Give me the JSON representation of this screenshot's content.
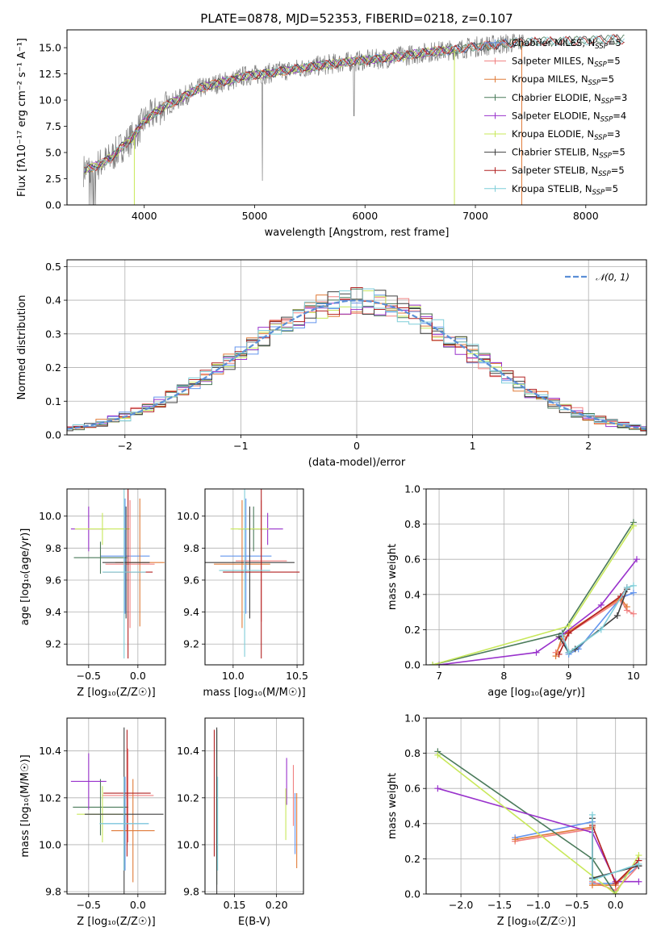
{
  "colors": {
    "Chabrier MILES": "#6495ed",
    "Salpeter MILES": "#f08080",
    "Kroupa MILES": "#e07b39",
    "Chabrier ELODIE": "#4a7a5a",
    "Salpeter ELODIE": "#9932cc",
    "Kroupa ELODIE": "#c8e85a",
    "Chabrier STELIB": "#404040",
    "Salpeter STELIB": "#b22222",
    "Kroupa STELIB": "#7fcdd8",
    "spectrum": "#808080",
    "normal": "#5b8fd6"
  },
  "chart_data": [
    {
      "id": "spectrum",
      "type": "line",
      "title": "PLATE=0878, MJD=52353, FIBERID=0218, z=0.107",
      "xlabel": "wavelength [Angstrom, rest frame]",
      "ylabel": "Flux [fλ10⁻¹⁷ erg cm⁻² s⁻¹ A⁻¹]",
      "xlim": [
        3300,
        8550
      ],
      "ylim": [
        0,
        16.7
      ],
      "xticks": [
        "4000",
        "5000",
        "6000",
        "7000",
        "8000"
      ],
      "yticks": [
        "0.0",
        "2.5",
        "5.0",
        "7.5",
        "10.0",
        "12.5",
        "15.0"
      ],
      "grid": false,
      "legend_position": "right",
      "legend": [
        "Chabrier MILES, N_SSP=5",
        "Salpeter MILES, N_SSP=5",
        "Kroupa MILES, N_SSP=5",
        "Chabrier ELODIE, N_SSP=3",
        "Salpeter ELODIE, N_SSP=4",
        "Kroupa ELODIE, N_SSP=3",
        "Chabrier STELIB, N_SSP=5",
        "Salpeter STELIB, N_SSP=5",
        "Kroupa STELIB, N_SSP=5"
      ],
      "legend_sub": "SSP",
      "continuum": [
        [
          3450,
          3.3
        ],
        [
          3600,
          3.9
        ],
        [
          3700,
          4.5
        ],
        [
          3800,
          5.6
        ],
        [
          3900,
          6.5
        ],
        [
          4000,
          8.0
        ],
        [
          4100,
          8.8
        ],
        [
          4200,
          9.5
        ],
        [
          4300,
          10.0
        ],
        [
          4400,
          10.6
        ],
        [
          4500,
          11.1
        ],
        [
          4600,
          11.4
        ],
        [
          4700,
          11.7
        ],
        [
          4800,
          11.9
        ],
        [
          4900,
          12.3
        ],
        [
          5000,
          12.4
        ],
        [
          5100,
          12.5
        ],
        [
          5200,
          12.7
        ],
        [
          5400,
          13.0
        ],
        [
          5600,
          13.3
        ],
        [
          5800,
          13.6
        ],
        [
          6000,
          13.8
        ],
        [
          6200,
          14.0
        ],
        [
          6400,
          14.3
        ],
        [
          6600,
          14.6
        ],
        [
          6800,
          14.8
        ],
        [
          7000,
          15.1
        ],
        [
          7200,
          15.3
        ],
        [
          7400,
          15.5
        ],
        [
          7600,
          15.6
        ],
        [
          7800,
          15.6
        ],
        [
          8000,
          15.7
        ],
        [
          8200,
          15.8
        ],
        [
          8350,
          15.8
        ]
      ]
    },
    {
      "id": "residuals",
      "type": "histogram",
      "xlabel": "(data-model)/error",
      "ylabel": "Normed distribution",
      "xlim": [
        -2.5,
        2.5
      ],
      "ylim": [
        0,
        0.52
      ],
      "xticks": [
        "−2",
        "−1",
        "0",
        "1",
        "2"
      ],
      "yticks": [
        "0.0",
        "0.1",
        "0.2",
        "0.3",
        "0.4",
        "0.5"
      ],
      "grid": true,
      "legend": "𝒩(0, 1)",
      "bin_width": 0.1
    },
    {
      "id": "age-vs-Z",
      "type": "errorbar",
      "xlabel": "Z [log₁₀(Z/Z☉)]",
      "ylabel": "age  [log₁₀(age/yr)]",
      "xlim": [
        -0.72,
        0.28
      ],
      "ylim": [
        9.07,
        10.17
      ],
      "xticks": [
        "−0.5",
        "0.0"
      ],
      "yticks": [
        "9.2",
        "9.4",
        "9.6",
        "9.8",
        "10.0"
      ],
      "grid": true,
      "points": [
        {
          "model": "Chabrier MILES",
          "x": -0.13,
          "xerr": 0.25,
          "y": 9.75,
          "yerr": 0.36
        },
        {
          "model": "Salpeter MILES",
          "x": -0.08,
          "xerr": 0.25,
          "y": 9.7,
          "yerr": 0.4
        },
        {
          "model": "Kroupa MILES",
          "x": 0.02,
          "xerr": 0.25,
          "y": 9.71,
          "yerr": 0.4
        },
        {
          "model": "Chabrier ELODIE",
          "x": -0.38,
          "xerr": 0.27,
          "y": 9.74,
          "yerr": 0.1
        },
        {
          "model": "Salpeter ELODIE",
          "x": -0.5,
          "xerr": 0.18,
          "y": 9.92,
          "yerr": 0.14
        },
        {
          "model": "Kroupa ELODIE",
          "x": -0.36,
          "xerr": 0.28,
          "y": 9.92,
          "yerr": 0.1
        },
        {
          "model": "Chabrier STELIB",
          "x": -0.12,
          "xerr": 0.24,
          "y": 9.71,
          "yerr": 0.35
        },
        {
          "model": "Salpeter STELIB",
          "x": -0.1,
          "xerr": 0.25,
          "y": 9.65,
          "yerr": 0.54
        },
        {
          "model": "Kroupa STELIB",
          "x": -0.14,
          "xerr": 0.22,
          "y": 9.65,
          "yerr": 0.54
        }
      ]
    },
    {
      "id": "age-vs-mass",
      "type": "errorbar",
      "xlabel": "mass [log₁₀(M/M☉)]",
      "ylabel": "",
      "xlim": [
        9.78,
        10.55
      ],
      "ylim": [
        9.07,
        10.17
      ],
      "xticks": [
        "10.0",
        "10.5"
      ],
      "yticks": [
        "9.2",
        "9.4",
        "9.6",
        "9.8",
        "10.0"
      ],
      "grid": true,
      "points": [
        {
          "model": "Chabrier MILES",
          "x": 10.1,
          "xerr": 0.2,
          "y": 9.75,
          "yerr": 0.36
        },
        {
          "model": "Salpeter MILES",
          "x": 10.22,
          "xerr": 0.2,
          "y": 9.72,
          "yerr": 0.38
        },
        {
          "model": "Kroupa MILES",
          "x": 10.07,
          "xerr": 0.22,
          "y": 9.7,
          "yerr": 0.4
        },
        {
          "model": "Chabrier ELODIE",
          "x": 10.16,
          "xerr": 0.12,
          "y": 9.92,
          "yerr": 0.14
        },
        {
          "model": "Salpeter ELODIE",
          "x": 10.27,
          "xerr": 0.12,
          "y": 9.92,
          "yerr": 0.1
        },
        {
          "model": "Kroupa ELODIE",
          "x": 10.13,
          "xerr": 0.15,
          "y": 9.92,
          "yerr": 0.1
        },
        {
          "model": "Chabrier STELIB",
          "x": 10.13,
          "xerr": 0.35,
          "y": 9.71,
          "yerr": 0.35
        },
        {
          "model": "Salpeter STELIB",
          "x": 10.22,
          "xerr": 0.3,
          "y": 9.65,
          "yerr": 0.54
        },
        {
          "model": "Kroupa STELIB",
          "x": 10.09,
          "xerr": 0.2,
          "y": 9.66,
          "yerr": 0.54
        }
      ]
    },
    {
      "id": "massweight-vs-age",
      "type": "line",
      "xlabel": "age  [log₁₀(age/yr)]",
      "ylabel": "mass weight",
      "xlim": [
        6.8,
        10.2
      ],
      "ylim": [
        0,
        1
      ],
      "xticks": [
        "7",
        "8",
        "9",
        "10"
      ],
      "yticks": [
        "0.0",
        "0.2",
        "0.4",
        "0.6",
        "0.8",
        "1.0"
      ],
      "grid": true,
      "series": [
        {
          "model": "Chabrier MILES",
          "points": [
            [
              8.9,
              0.16
            ],
            [
              9.0,
              0.06
            ],
            [
              9.15,
              0.09
            ],
            [
              9.8,
              0.38
            ],
            [
              10.0,
              0.41
            ]
          ]
        },
        {
          "model": "Salpeter MILES",
          "points": [
            [
              8.8,
              0.07
            ],
            [
              9.0,
              0.18
            ],
            [
              9.8,
              0.37
            ],
            [
              9.9,
              0.31
            ],
            [
              10.0,
              0.29
            ]
          ]
        },
        {
          "model": "Kroupa MILES",
          "points": [
            [
              8.8,
              0.05
            ],
            [
              8.9,
              0.16
            ],
            [
              9.0,
              0.19
            ],
            [
              9.8,
              0.38
            ],
            [
              9.9,
              0.33
            ]
          ]
        },
        {
          "model": "Chabrier ELODIE",
          "points": [
            [
              6.9,
              0.0
            ],
            [
              8.9,
              0.18
            ],
            [
              10.0,
              0.81
            ]
          ]
        },
        {
          "model": "Salpeter ELODIE",
          "points": [
            [
              7.0,
              0.0
            ],
            [
              8.5,
              0.07
            ],
            [
              8.9,
              0.17
            ],
            [
              9.5,
              0.34
            ],
            [
              10.05,
              0.6
            ]
          ]
        },
        {
          "model": "Kroupa ELODIE",
          "points": [
            [
              6.9,
              0.0
            ],
            [
              9.0,
              0.22
            ],
            [
              10.0,
              0.79
            ]
          ]
        },
        {
          "model": "Chabrier STELIB",
          "points": [
            [
              8.85,
              0.16
            ],
            [
              9.0,
              0.07
            ],
            [
              9.1,
              0.09
            ],
            [
              9.75,
              0.28
            ],
            [
              9.9,
              0.43
            ]
          ]
        },
        {
          "model": "Salpeter STELIB",
          "points": [
            [
              8.85,
              0.06
            ],
            [
              9.0,
              0.18
            ],
            [
              9.8,
              0.39
            ],
            [
              9.9,
              0.44
            ]
          ]
        },
        {
          "model": "Kroupa STELIB",
          "points": [
            [
              8.9,
              0.17
            ],
            [
              9.0,
              0.07
            ],
            [
              9.5,
              0.2
            ],
            [
              9.9,
              0.44
            ],
            [
              10.0,
              0.45
            ]
          ]
        }
      ]
    },
    {
      "id": "mass-vs-Z",
      "type": "errorbar",
      "xlabel": "Z [log₁₀(Z/Z☉)]",
      "ylabel": "mass [log₁₀(M/M☉)]",
      "xlim": [
        -0.72,
        0.28
      ],
      "ylim": [
        9.79,
        10.54
      ],
      "xticks": [
        "−0.5",
        "0.0"
      ],
      "yticks": [
        "9.8",
        "10.0",
        "10.2",
        "10.4"
      ],
      "grid": true,
      "points": [
        {
          "model": "Chabrier MILES",
          "x": -0.13,
          "xerr": 0.24,
          "y": 10.09,
          "yerr": 0.2
        },
        {
          "model": "Salpeter MILES",
          "x": -0.1,
          "xerr": 0.26,
          "y": 10.21,
          "yerr": 0.2
        },
        {
          "model": "Kroupa MILES",
          "x": -0.05,
          "xerr": 0.22,
          "y": 10.06,
          "yerr": 0.22
        },
        {
          "model": "Chabrier ELODIE",
          "x": -0.38,
          "xerr": 0.28,
          "y": 10.16,
          "yerr": 0.12
        },
        {
          "model": "Salpeter ELODIE",
          "x": -0.5,
          "xerr": 0.18,
          "y": 10.27,
          "yerr": 0.12
        },
        {
          "model": "Kroupa ELODIE",
          "x": -0.36,
          "xerr": 0.26,
          "y": 10.13,
          "yerr": 0.12
        },
        {
          "model": "Chabrier STELIB",
          "x": -0.14,
          "xerr": 0.4,
          "y": 10.13,
          "yerr": 0.37
        },
        {
          "model": "Salpeter STELIB",
          "x": -0.11,
          "xerr": 0.24,
          "y": 10.22,
          "yerr": 0.27
        },
        {
          "model": "Kroupa STELIB",
          "x": -0.14,
          "xerr": 0.25,
          "y": 10.09,
          "yerr": 0.2
        }
      ]
    },
    {
      "id": "mass-vs-EBV",
      "type": "errorbar",
      "xlabel": "E(B-V)",
      "ylabel": "",
      "xlim": [
        0.115,
        0.232
      ],
      "ylim": [
        9.79,
        10.54
      ],
      "xticks": [
        "0.15",
        "0.20"
      ],
      "yticks": [
        "9.8",
        "10.0",
        "10.2",
        "10.4"
      ],
      "grid": true,
      "points": [
        {
          "model": "Chabrier MILES",
          "x": 0.222,
          "y": 10.09,
          "yerr": 0.13
        },
        {
          "model": "Salpeter MILES",
          "x": 0.22,
          "y": 10.21,
          "yerr": 0.13
        },
        {
          "model": "Kroupa MILES",
          "x": 0.224,
          "y": 10.06,
          "yerr": 0.16
        },
        {
          "model": "Chabrier ELODIE",
          "x": 0.129,
          "y": 10.16,
          "yerr": 0.33
        },
        {
          "model": "Salpeter ELODIE",
          "x": 0.212,
          "y": 10.27,
          "yerr": 0.1
        },
        {
          "model": "Kroupa ELODIE",
          "x": 0.211,
          "y": 10.13,
          "yerr": 0.11
        },
        {
          "model": "Chabrier STELIB",
          "x": 0.129,
          "y": 10.13,
          "yerr": 0.37
        },
        {
          "model": "Salpeter STELIB",
          "x": 0.126,
          "y": 10.22,
          "yerr": 0.27
        },
        {
          "model": "Kroupa STELIB",
          "x": 0.13,
          "y": 10.09,
          "yerr": 0.2
        }
      ]
    },
    {
      "id": "massweight-vs-Z",
      "type": "line",
      "xlabel": "Z [log₁₀(Z/Z☉)]",
      "ylabel": "mass weight",
      "xlim": [
        -2.45,
        0.4
      ],
      "ylim": [
        0,
        1
      ],
      "xticks": [
        "−2.0",
        "−1.5",
        "−1.0",
        "−0.5",
        "0.0"
      ],
      "yticks": [
        "0.0",
        "0.2",
        "0.4",
        "0.6",
        "0.8",
        "1.0"
      ],
      "grid": true,
      "series": [
        {
          "model": "Chabrier MILES",
          "points": [
            [
              -1.3,
              0.32
            ],
            [
              -0.3,
              0.41
            ],
            [
              -0.3,
              0.06
            ],
            [
              0.0,
              0.06
            ],
            [
              0.3,
              0.16
            ]
          ]
        },
        {
          "model": "Salpeter MILES",
          "points": [
            [
              -1.3,
              0.3
            ],
            [
              -0.3,
              0.37
            ],
            [
              -0.3,
              0.07
            ],
            [
              0.0,
              0.02
            ],
            [
              0.3,
              0.16
            ]
          ]
        },
        {
          "model": "Kroupa MILES",
          "points": [
            [
              -1.3,
              0.31
            ],
            [
              -0.3,
              0.38
            ],
            [
              -0.3,
              0.05
            ],
            [
              0.0,
              0.05
            ],
            [
              0.3,
              0.19
            ]
          ]
        },
        {
          "model": "Chabrier ELODIE",
          "points": [
            [
              -2.3,
              0.81
            ],
            [
              -0.3,
              0.2
            ],
            [
              0.0,
              0.0
            ]
          ]
        },
        {
          "model": "Salpeter ELODIE",
          "points": [
            [
              -2.3,
              0.6
            ],
            [
              -0.3,
              0.35
            ],
            [
              0.0,
              0.07
            ],
            [
              0.3,
              0.07
            ]
          ]
        },
        {
          "model": "Kroupa ELODIE",
          "points": [
            [
              -2.3,
              0.79
            ],
            [
              0.0,
              0.0
            ],
            [
              0.3,
              0.22
            ]
          ]
        },
        {
          "model": "Chabrier STELIB",
          "points": [
            [
              -0.3,
              0.43
            ],
            [
              -0.3,
              0.09
            ],
            [
              0.3,
              0.16
            ],
            [
              0.3,
              0.16
            ]
          ]
        },
        {
          "model": "Salpeter STELIB",
          "points": [
            [
              -0.3,
              0.39
            ],
            [
              0.0,
              0.06
            ],
            [
              0.3,
              0.19
            ]
          ]
        },
        {
          "model": "Kroupa STELIB",
          "points": [
            [
              -0.3,
              0.45
            ],
            [
              -0.3,
              0.08
            ],
            [
              0.3,
              0.17
            ]
          ]
        }
      ]
    }
  ]
}
